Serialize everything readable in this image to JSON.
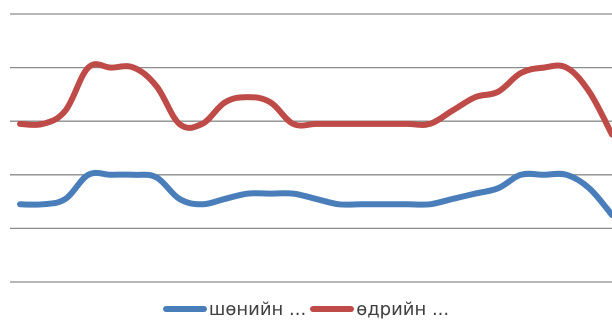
{
  "chart_data": {
    "type": "line",
    "ylim": [
      0,
      10
    ],
    "gridlines": [
      0,
      2,
      4,
      6,
      8,
      10
    ],
    "grid": true,
    "legend_position": "bottom",
    "series": [
      {
        "name": "шөнийн ...",
        "color": "#4a7ebb",
        "values": [
          2.9,
          2.9,
          3.1,
          4.0,
          4.0,
          4.0,
          3.9,
          3.1,
          2.9,
          3.1,
          3.3,
          3.3,
          3.3,
          3.1,
          2.9,
          2.9,
          2.9,
          2.9,
          2.9,
          3.1,
          3.3,
          3.5,
          4.0,
          4.0,
          4.0,
          3.5,
          2.5
        ]
      },
      {
        "name": "өдрийн ...",
        "color": "#be4b48",
        "values": [
          5.9,
          5.9,
          6.4,
          8.0,
          8.0,
          8.0,
          7.3,
          5.9,
          5.9,
          6.7,
          6.9,
          6.7,
          5.9,
          5.9,
          5.9,
          5.9,
          5.9,
          5.9,
          5.9,
          6.4,
          6.9,
          7.1,
          7.8,
          8.0,
          8.0,
          7.1,
          5.5
        ]
      }
    ]
  }
}
